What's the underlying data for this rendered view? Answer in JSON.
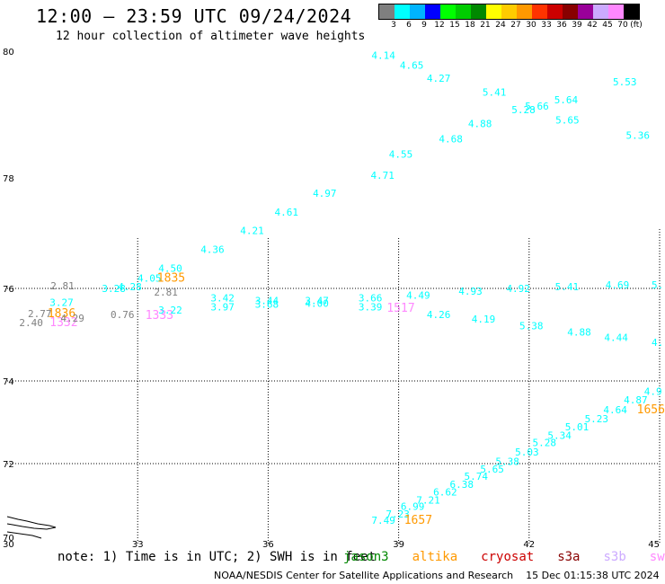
{
  "header": {
    "title": "12:00 — 23:59 UTC 09/24/2024",
    "subtitle": "12 hour collection of altimeter wave heights"
  },
  "legend": {
    "colors": [
      "#7f7f7f",
      "#00ffff",
      "#00b4ff",
      "#0000ff",
      "#00ff00",
      "#00cc00",
      "#008800",
      "#ffff00",
      "#ffcc00",
      "#ff9900",
      "#ff3300",
      "#cc0000",
      "#880000",
      "#990099",
      "#ccaaff",
      "#ff88ff",
      "#000000"
    ],
    "labels": [
      "3",
      "6",
      "9",
      "12",
      "15",
      "18",
      "21",
      "24",
      "27",
      "30",
      "33",
      "36",
      "39",
      "42",
      "45",
      "70",
      "(ft)"
    ]
  },
  "axes": {
    "x_ticks": [
      "30",
      "33",
      "36",
      "39",
      "42",
      "45"
    ],
    "y_ticks": [
      "70",
      "72",
      "74",
      "76",
      "78",
      "80"
    ]
  },
  "observations": [
    {
      "v": "4.14",
      "lon": 38.65,
      "lat": 79.88,
      "c": "#00ffff"
    },
    {
      "v": "4.65",
      "lon": 39.3,
      "lat": 79.72,
      "c": "#00ffff"
    },
    {
      "v": "4.27",
      "lon": 39.92,
      "lat": 79.52,
      "c": "#00ffff"
    },
    {
      "v": "5.41",
      "lon": 41.2,
      "lat": 79.3,
      "c": "#00ffff"
    },
    {
      "v": "5.28",
      "lon": 41.87,
      "lat": 79.02,
      "c": "#00ffff"
    },
    {
      "v": "5.66",
      "lon": 42.18,
      "lat": 79.08,
      "c": "#00ffff"
    },
    {
      "v": "5.64",
      "lon": 42.85,
      "lat": 79.18,
      "c": "#00ffff"
    },
    {
      "v": "5.53",
      "lon": 44.2,
      "lat": 79.46,
      "c": "#00ffff"
    },
    {
      "v": "5.65",
      "lon": 42.88,
      "lat": 78.86,
      "c": "#00ffff"
    },
    {
      "v": "5.36",
      "lon": 44.5,
      "lat": 78.62,
      "c": "#00ffff"
    },
    {
      "v": "4.88",
      "lon": 40.87,
      "lat": 78.8,
      "c": "#00ffff"
    },
    {
      "v": "4.68",
      "lon": 40.2,
      "lat": 78.56,
      "c": "#00ffff"
    },
    {
      "v": "4.55",
      "lon": 39.05,
      "lat": 78.32,
      "c": "#00ffff"
    },
    {
      "v": "4.71",
      "lon": 38.63,
      "lat": 77.98,
      "c": "#00ffff"
    },
    {
      "v": "4.97",
      "lon": 37.3,
      "lat": 77.66,
      "c": "#00ffff"
    },
    {
      "v": "4.61",
      "lon": 36.42,
      "lat": 77.32,
      "c": "#00ffff"
    },
    {
      "v": "4.21",
      "lon": 35.63,
      "lat": 76.98,
      "c": "#00ffff"
    },
    {
      "v": "4.36",
      "lon": 34.72,
      "lat": 76.64,
      "c": "#00ffff"
    },
    {
      "v": "4.50",
      "lon": 33.75,
      "lat": 76.3,
      "c": "#00ffff"
    },
    {
      "v": "4.05",
      "lon": 33.27,
      "lat": 76.12,
      "c": "#00ffff"
    },
    {
      "v": "4.28",
      "lon": 32.82,
      "lat": 75.96,
      "c": "#00ffff"
    },
    {
      "v": "3.28",
      "lon": 32.45,
      "lat": 75.92,
      "c": "#00ffff"
    },
    {
      "v": "3.27",
      "lon": 31.25,
      "lat": 75.62,
      "c": "#00ffff"
    },
    {
      "v": "1835",
      "lon": 33.77,
      "lat": 76.12,
      "c": "#ff9900",
      "big": true
    },
    {
      "v": "2.81",
      "lon": 31.27,
      "lat": 75.98,
      "c": "#7f7f7f"
    },
    {
      "v": "2.81",
      "lon": 33.65,
      "lat": 75.84,
      "c": "#7f7f7f"
    },
    {
      "v": "2.77",
      "lon": 30.75,
      "lat": 75.38,
      "c": "#7f7f7f"
    },
    {
      "v": "1836",
      "lon": 31.25,
      "lat": 75.38,
      "c": "#ff9900",
      "big": true
    },
    {
      "v": "2.40",
      "lon": 30.55,
      "lat": 75.18,
      "c": "#7f7f7f"
    },
    {
      "v": "1332",
      "lon": 31.3,
      "lat": 75.18,
      "c": "#ff88ff",
      "big": true
    },
    {
      "v": "4.29",
      "lon": 31.5,
      "lat": 75.28,
      "c": "#7f7f7f"
    },
    {
      "v": "0.76",
      "lon": 32.65,
      "lat": 75.36,
      "c": "#7f7f7f"
    },
    {
      "v": "1333",
      "lon": 33.5,
      "lat": 75.34,
      "c": "#ff88ff",
      "big": true
    },
    {
      "v": "3.22",
      "lon": 33.75,
      "lat": 75.46,
      "c": "#00ffff"
    },
    {
      "v": "3.42",
      "lon": 34.95,
      "lat": 75.72,
      "c": "#00ffff"
    },
    {
      "v": "3.97",
      "lon": 34.95,
      "lat": 75.52,
      "c": "#00ffff"
    },
    {
      "v": "3.44",
      "lon": 35.97,
      "lat": 75.66,
      "c": "#00ffff"
    },
    {
      "v": "3.68",
      "lon": 35.97,
      "lat": 75.58,
      "c": "#00ffff"
    },
    {
      "v": "3.47",
      "lon": 37.12,
      "lat": 75.66,
      "c": "#00ffff"
    },
    {
      "v": "4.00",
      "lon": 37.12,
      "lat": 75.6,
      "c": "#00ffff"
    },
    {
      "v": "3.66",
      "lon": 38.35,
      "lat": 75.72,
      "c": "#00ffff"
    },
    {
      "v": "3.39",
      "lon": 38.35,
      "lat": 75.52,
      "c": "#00ffff"
    },
    {
      "v": "1517",
      "lon": 39.05,
      "lat": 75.5,
      "c": "#ff88ff",
      "big": true
    },
    {
      "v": "4.49",
      "lon": 39.45,
      "lat": 75.78,
      "c": "#00ffff"
    },
    {
      "v": "4.26",
      "lon": 39.92,
      "lat": 75.36,
      "c": "#00ffff"
    },
    {
      "v": "4.93",
      "lon": 40.65,
      "lat": 75.86,
      "c": "#00ffff"
    },
    {
      "v": "4.19",
      "lon": 40.95,
      "lat": 75.26,
      "c": "#00ffff"
    },
    {
      "v": "4.92",
      "lon": 41.75,
      "lat": 75.92,
      "c": "#00ffff"
    },
    {
      "v": "5.38",
      "lon": 42.05,
      "lat": 75.12,
      "c": "#00ffff"
    },
    {
      "v": "5.41",
      "lon": 42.87,
      "lat": 75.96,
      "c": "#00ffff"
    },
    {
      "v": "4.88",
      "lon": 43.15,
      "lat": 74.98,
      "c": "#00ffff"
    },
    {
      "v": "4.69",
      "lon": 44.03,
      "lat": 76.0,
      "c": "#00ffff"
    },
    {
      "v": "4.44",
      "lon": 44.0,
      "lat": 74.86,
      "c": "#00ffff"
    },
    {
      "v": "5.",
      "lon": 44.95,
      "lat": 76.0,
      "c": "#00ffff"
    },
    {
      "v": "4.",
      "lon": 44.95,
      "lat": 74.76,
      "c": "#00ffff"
    },
    {
      "v": "4.9",
      "lon": 44.85,
      "lat": 73.66,
      "c": "#00ffff"
    },
    {
      "v": "4.87",
      "lon": 44.45,
      "lat": 73.46,
      "c": "#00ffff"
    },
    {
      "v": "1656",
      "lon": 44.8,
      "lat": 73.22,
      "c": "#ff9900",
      "big": true
    },
    {
      "v": "4.64",
      "lon": 43.98,
      "lat": 73.22,
      "c": "#00ffff"
    },
    {
      "v": "5.23",
      "lon": 43.55,
      "lat": 73.0,
      "c": "#00ffff"
    },
    {
      "v": "5.01",
      "lon": 43.1,
      "lat": 72.8,
      "c": "#00ffff"
    },
    {
      "v": "5.34",
      "lon": 42.7,
      "lat": 72.6,
      "c": "#00ffff"
    },
    {
      "v": "5.28",
      "lon": 42.35,
      "lat": 72.42,
      "c": "#00ffff"
    },
    {
      "v": "5.03",
      "lon": 41.95,
      "lat": 72.2,
      "c": "#00ffff"
    },
    {
      "v": "5.38",
      "lon": 41.5,
      "lat": 71.96,
      "c": "#00ffff"
    },
    {
      "v": "5.65",
      "lon": 41.15,
      "lat": 71.76,
      "c": "#00ffff"
    },
    {
      "v": "5.74",
      "lon": 40.78,
      "lat": 71.56,
      "c": "#00ffff"
    },
    {
      "v": "6.38",
      "lon": 40.45,
      "lat": 71.34,
      "c": "#00ffff"
    },
    {
      "v": "6.62",
      "lon": 40.07,
      "lat": 71.14,
      "c": "#00ffff"
    },
    {
      "v": "7.21",
      "lon": 39.68,
      "lat": 70.92,
      "c": "#00ffff"
    },
    {
      "v": "6.99",
      "lon": 39.32,
      "lat": 70.74,
      "c": "#00ffff"
    },
    {
      "v": "7.23",
      "lon": 38.98,
      "lat": 70.54,
      "c": "#00ffff"
    },
    {
      "v": "7.49",
      "lon": 38.65,
      "lat": 70.36,
      "c": "#00ffff"
    },
    {
      "v": "1657",
      "lon": 39.45,
      "lat": 70.36,
      "c": "#ff9900",
      "big": true
    }
  ],
  "note": {
    "text": "note: 1) Time is in UTC; 2) SWH is in feet",
    "instruments": [
      {
        "name": "jason3",
        "color": "#008800"
      },
      {
        "name": "altika",
        "color": "#ff9900"
      },
      {
        "name": "cryosat",
        "color": "#cc0000"
      },
      {
        "name": "s3a",
        "color": "#880000"
      },
      {
        "name": "s3b",
        "color": "#ccaaff"
      },
      {
        "name": "swot",
        "color": "#ff88ff"
      }
    ]
  },
  "footer": {
    "credit": "NOAA/NESDIS Center for Satellite Applications and Research",
    "timestamp": "15 Dec 01:15:38 UTC 2024"
  }
}
